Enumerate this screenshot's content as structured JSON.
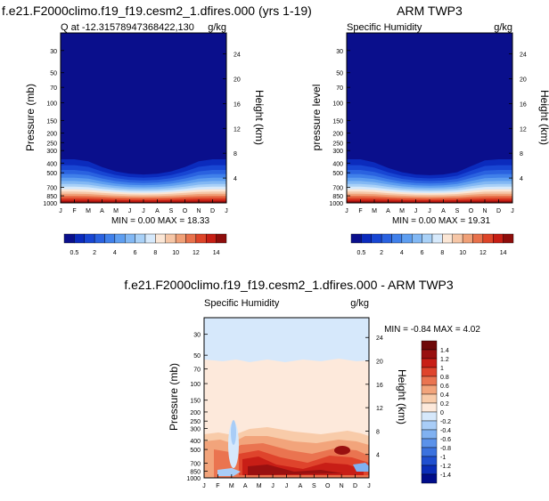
{
  "chart_data": [
    {
      "type": "heatmap",
      "title": "f.e21.F2000climo.f19_f19.cesm2_1.dfires.000 (yrs 1-19)",
      "left_label": "Q at -12.31578947368422,130",
      "right_label": "g/kg",
      "ylabel": "Pressure (mb)",
      "y2label": "Height (km)",
      "x_ticks": [
        "J",
        "F",
        "M",
        "A",
        "M",
        "J",
        "J",
        "A",
        "S",
        "O",
        "N",
        "D",
        "J"
      ],
      "y_ticks": [
        "30",
        "50",
        "70",
        "100",
        "150",
        "200",
        "250",
        "300",
        "400",
        "500",
        "700",
        "850",
        "1000"
      ],
      "y2_ticks": [
        "24",
        "20",
        "16",
        "12",
        "8",
        "4"
      ],
      "ylim": [
        1000,
        20
      ],
      "stats": "MIN =  0.00 MAX = 18.33",
      "min": 0.0,
      "max": 18.33,
      "colorbar_labels": [
        "0.5",
        "2",
        "4",
        "6",
        "8",
        "10",
        "12",
        "14"
      ],
      "moisture_top_mb": [
        300,
        300,
        320,
        380,
        430,
        460,
        470,
        460,
        430,
        380,
        320,
        300,
        300
      ]
    },
    {
      "type": "heatmap",
      "title": "ARM TWP3",
      "left_label": "Specific Humidity",
      "right_label": "g/kg",
      "ylabel": "pressure level",
      "y2label": "Height (km)",
      "x_ticks": [
        "J",
        "F",
        "M",
        "A",
        "M",
        "J",
        "J",
        "A",
        "S",
        "O",
        "N",
        "D",
        "J"
      ],
      "y_ticks": [
        "30",
        "50",
        "70",
        "100",
        "150",
        "200",
        "250",
        "300",
        "400",
        "500",
        "700",
        "850",
        "1000"
      ],
      "y2_ticks": [
        "24",
        "20",
        "16",
        "12",
        "8",
        "4"
      ],
      "ylim": [
        1000,
        20
      ],
      "stats": "MIN =  0.00 MAX = 19.31",
      "min": 0.0,
      "max": 19.31,
      "colorbar_labels": [
        "0.5",
        "2",
        "4",
        "6",
        "8",
        "10",
        "12",
        "14"
      ],
      "moisture_top_mb": [
        300,
        300,
        330,
        390,
        440,
        470,
        480,
        470,
        440,
        370,
        310,
        300,
        300
      ]
    },
    {
      "type": "heatmap",
      "title": "f.e21.F2000climo.f19_f19.cesm2_1.dfires.000 - ARM TWP3",
      "left_label": "Specific Humidity",
      "right_label": "g/kg",
      "ylabel": "Pressure (mb)",
      "y2label": "Height (km)",
      "x_ticks": [
        "J",
        "F",
        "M",
        "A",
        "M",
        "J",
        "J",
        "A",
        "S",
        "O",
        "N",
        "D",
        "J"
      ],
      "y_ticks": [
        "30",
        "50",
        "70",
        "100",
        "150",
        "200",
        "250",
        "300",
        "400",
        "500",
        "700",
        "850",
        "1000"
      ],
      "y2_ticks": [
        "24",
        "20",
        "16",
        "12",
        "8",
        "4"
      ],
      "ylim": [
        1000,
        20
      ],
      "stats": "MIN = -0.84 MAX =   4.02",
      "min": -0.84,
      "max": 4.02,
      "colorbar_labels": [
        "1.4",
        "1.2",
        "1",
        "0.8",
        "0.6",
        "0.4",
        "0.2",
        "0",
        "-0.2",
        "-0.4",
        "-0.6",
        "-0.8",
        "-1",
        "-1.2",
        "-1.4"
      ]
    }
  ],
  "colors": {
    "seq": [
      "#0a0f8c",
      "#0b2bbd",
      "#1846d3",
      "#2a62e0",
      "#4080ea",
      "#5e9ef0",
      "#82b8f4",
      "#a9d1f7",
      "#d6e9fb",
      "#fbe6d5",
      "#f6c6a6",
      "#f0a077",
      "#e8714b",
      "#dd4428",
      "#c61e14",
      "#8e0d0b"
    ],
    "div": [
      "#000c8a",
      "#0a2db8",
      "#1f4fd0",
      "#3b72df",
      "#5b92ea",
      "#80b1f1",
      "#a9cdf7",
      "#d6e8fb",
      "#fde9db",
      "#f8cba9",
      "#f2a47b",
      "#ea7450",
      "#df442c",
      "#c81e16",
      "#991010",
      "#6e0808"
    ]
  }
}
